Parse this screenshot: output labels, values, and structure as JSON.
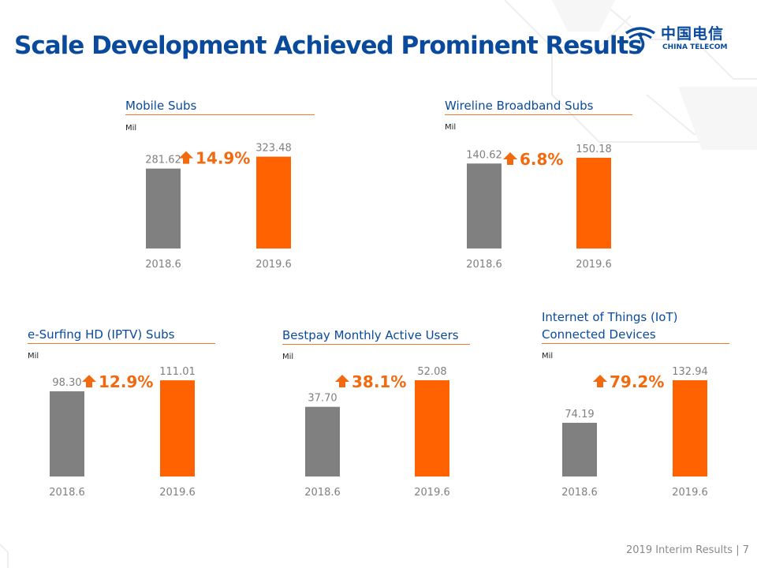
{
  "page": {
    "title": "Scale Development Achieved Prominent Results",
    "logo_cn": "中国电信",
    "logo_en": "CHINA TELECOM",
    "footer": "2019 Interim Results |   7"
  },
  "colors": {
    "title": "#0a4a9c",
    "bar_2018": "#808080",
    "bar_2019": "#ff6200",
    "growth": "#f26a10",
    "label": "#7f7f7f"
  },
  "chart_data": [
    {
      "type": "bar",
      "title": "Mobile Subs",
      "unit": "Mil",
      "categories": [
        "2018.6",
        "2019.6"
      ],
      "values": [
        281.62,
        323.48
      ],
      "value_labels": [
        "281.62",
        "323.48"
      ],
      "growth": "14.9%",
      "growth_direction": "up"
    },
    {
      "type": "bar",
      "title": "Wireline Broadband Subs",
      "unit": "Mil",
      "categories": [
        "2018.6",
        "2019.6"
      ],
      "values": [
        140.62,
        150.18
      ],
      "value_labels": [
        "140.62",
        "150.18"
      ],
      "growth": "6.8%",
      "growth_direction": "up"
    },
    {
      "type": "bar",
      "title": "e-Surfing HD (IPTV) Subs",
      "unit": "Mil",
      "categories": [
        "2018.6",
        "2019.6"
      ],
      "values": [
        98.3,
        111.01
      ],
      "value_labels": [
        "98.30",
        "111.01"
      ],
      "growth": "12.9%",
      "growth_direction": "up"
    },
    {
      "type": "bar",
      "title": "Bestpay Monthly Active Users",
      "unit": "Mil",
      "categories": [
        "2018.6",
        "2019.6"
      ],
      "values": [
        37.7,
        52.08
      ],
      "value_labels": [
        "37.70",
        "52.08"
      ],
      "growth": "38.1%",
      "growth_direction": "up"
    },
    {
      "type": "bar",
      "title": "Internet of Things (IoT) Connected Devices",
      "title_lines": [
        "Internet of Things (IoT)",
        "Connected Devices"
      ],
      "unit": "Mil",
      "categories": [
        "2018.6",
        "2019.6"
      ],
      "values": [
        74.19,
        132.94
      ],
      "value_labels": [
        "74.19",
        "132.94"
      ],
      "growth": "79.2%",
      "growth_direction": "up"
    }
  ]
}
